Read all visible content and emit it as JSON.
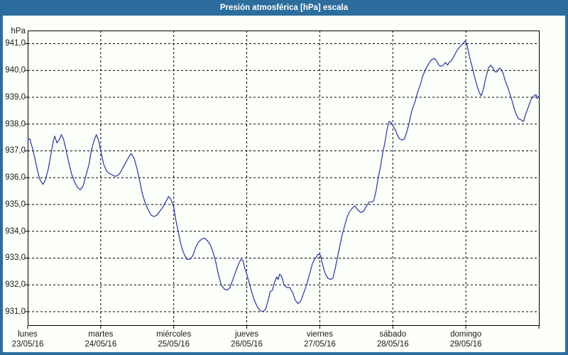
{
  "window": {
    "title": "Presión atmosférica [hPa] escala"
  },
  "colors": {
    "frame": "#2d6d9e",
    "panel_background": "#fdfffa",
    "line": "#2433ad",
    "grid": "#000000",
    "text": "#1a1a1a",
    "title_text": "#ffffff"
  },
  "chart_data": {
    "type": "line",
    "title": "Presión atmosférica [hPa] escala",
    "unit_label": "hPa",
    "ylabel": "hPa",
    "xlabel": "",
    "ylim": [
      930.47,
      941.49
    ],
    "xlim_days": [
      0,
      7
    ],
    "grid": "dashed horizontal at every 1 hPa, dashed vertical at day boundaries",
    "legend": "none",
    "y_ticks": [
      {
        "value": 941,
        "label": "941,0"
      },
      {
        "value": 940,
        "label": "940,0"
      },
      {
        "value": 939,
        "label": "939,0"
      },
      {
        "value": 938,
        "label": "938,0"
      },
      {
        "value": 937,
        "label": "937,0"
      },
      {
        "value": 936,
        "label": "936,0"
      },
      {
        "value": 935,
        "label": "935,0"
      },
      {
        "value": 934,
        "label": "934,0"
      },
      {
        "value": 933,
        "label": "933,0"
      },
      {
        "value": 932,
        "label": "932,0"
      },
      {
        "value": 931,
        "label": "931,0"
      }
    ],
    "x_days": [
      {
        "name": "lunes",
        "date": "23/05/16"
      },
      {
        "name": "martes",
        "date": "24/05/16"
      },
      {
        "name": "miércoles",
        "date": "25/05/16"
      },
      {
        "name": "jueves",
        "date": "26/05/16"
      },
      {
        "name": "viernes",
        "date": "27/05/16"
      },
      {
        "name": "sábado",
        "date": "28/05/16"
      },
      {
        "name": "domingo",
        "date": "29/05/16"
      }
    ],
    "series": [
      {
        "name": "Presión atmosférica",
        "color": "#2433ad",
        "points": [
          [
            0.0,
            937.4
          ],
          [
            0.03,
            937.45
          ],
          [
            0.06,
            937.15
          ],
          [
            0.1,
            936.7
          ],
          [
            0.14,
            936.2
          ],
          [
            0.17,
            935.9
          ],
          [
            0.21,
            935.75
          ],
          [
            0.24,
            935.9
          ],
          [
            0.28,
            936.3
          ],
          [
            0.32,
            936.9
          ],
          [
            0.35,
            937.35
          ],
          [
            0.37,
            937.55
          ],
          [
            0.4,
            937.3
          ],
          [
            0.43,
            937.4
          ],
          [
            0.46,
            937.6
          ],
          [
            0.49,
            937.45
          ],
          [
            0.52,
            937.1
          ],
          [
            0.56,
            936.6
          ],
          [
            0.6,
            936.15
          ],
          [
            0.64,
            935.85
          ],
          [
            0.68,
            935.65
          ],
          [
            0.72,
            935.55
          ],
          [
            0.76,
            935.7
          ],
          [
            0.8,
            936.1
          ],
          [
            0.84,
            936.5
          ],
          [
            0.87,
            937.0
          ],
          [
            0.91,
            937.4
          ],
          [
            0.94,
            937.6
          ],
          [
            0.97,
            937.4
          ],
          [
            1.0,
            937.0
          ],
          [
            1.04,
            936.5
          ],
          [
            1.08,
            936.25
          ],
          [
            1.12,
            936.15
          ],
          [
            1.16,
            936.1
          ],
          [
            1.2,
            936.05
          ],
          [
            1.24,
            936.1
          ],
          [
            1.27,
            936.2
          ],
          [
            1.31,
            936.4
          ],
          [
            1.35,
            936.6
          ],
          [
            1.39,
            936.8
          ],
          [
            1.42,
            936.9
          ],
          [
            1.46,
            936.7
          ],
          [
            1.5,
            936.3
          ],
          [
            1.54,
            935.8
          ],
          [
            1.57,
            935.4
          ],
          [
            1.61,
            935.05
          ],
          [
            1.65,
            934.8
          ],
          [
            1.69,
            934.6
          ],
          [
            1.73,
            934.55
          ],
          [
            1.77,
            934.6
          ],
          [
            1.81,
            934.75
          ],
          [
            1.85,
            934.9
          ],
          [
            1.89,
            935.1
          ],
          [
            1.93,
            935.3
          ],
          [
            1.96,
            935.2
          ],
          [
            2.0,
            934.9
          ],
          [
            2.03,
            934.4
          ],
          [
            2.06,
            934.0
          ],
          [
            2.09,
            933.6
          ],
          [
            2.12,
            933.3
          ],
          [
            2.15,
            933.1
          ],
          [
            2.18,
            932.95
          ],
          [
            2.21,
            932.95
          ],
          [
            2.24,
            933.0
          ],
          [
            2.27,
            933.15
          ],
          [
            2.3,
            933.4
          ],
          [
            2.34,
            933.6
          ],
          [
            2.38,
            933.7
          ],
          [
            2.42,
            933.75
          ],
          [
            2.46,
            933.65
          ],
          [
            2.5,
            933.5
          ],
          [
            2.54,
            933.2
          ],
          [
            2.58,
            932.8
          ],
          [
            2.61,
            932.4
          ],
          [
            2.65,
            932.0
          ],
          [
            2.69,
            931.85
          ],
          [
            2.73,
            931.8
          ],
          [
            2.77,
            931.9
          ],
          [
            2.81,
            932.2
          ],
          [
            2.85,
            932.5
          ],
          [
            2.89,
            932.8
          ],
          [
            2.92,
            932.95
          ],
          [
            2.95,
            932.9
          ],
          [
            2.97,
            932.65
          ],
          [
            3.0,
            932.4
          ],
          [
            3.03,
            932.1
          ],
          [
            3.06,
            931.8
          ],
          [
            3.1,
            931.45
          ],
          [
            3.14,
            931.2
          ],
          [
            3.18,
            931.05
          ],
          [
            3.22,
            931.0
          ],
          [
            3.26,
            931.1
          ],
          [
            3.3,
            931.5
          ],
          [
            3.32,
            931.75
          ],
          [
            3.35,
            931.8
          ],
          [
            3.38,
            932.1
          ],
          [
            3.41,
            932.3
          ],
          [
            3.43,
            932.2
          ],
          [
            3.45,
            932.4
          ],
          [
            3.48,
            932.3
          ],
          [
            3.51,
            932.0
          ],
          [
            3.55,
            931.9
          ],
          [
            3.59,
            931.9
          ],
          [
            3.63,
            931.7
          ],
          [
            3.66,
            931.45
          ],
          [
            3.7,
            931.3
          ],
          [
            3.74,
            931.4
          ],
          [
            3.78,
            931.7
          ],
          [
            3.82,
            932.0
          ],
          [
            3.86,
            932.4
          ],
          [
            3.9,
            932.8
          ],
          [
            3.94,
            933.0
          ],
          [
            3.98,
            933.15
          ],
          [
            4.01,
            933.1
          ],
          [
            4.03,
            932.85
          ],
          [
            4.07,
            932.45
          ],
          [
            4.11,
            932.25
          ],
          [
            4.15,
            932.2
          ],
          [
            4.18,
            932.25
          ],
          [
            4.21,
            932.6
          ],
          [
            4.24,
            933.0
          ],
          [
            4.27,
            933.4
          ],
          [
            4.3,
            933.8
          ],
          [
            4.33,
            934.1
          ],
          [
            4.37,
            934.5
          ],
          [
            4.4,
            934.7
          ],
          [
            4.44,
            934.85
          ],
          [
            4.48,
            934.95
          ],
          [
            4.52,
            934.8
          ],
          [
            4.56,
            934.7
          ],
          [
            4.6,
            934.75
          ],
          [
            4.64,
            934.95
          ],
          [
            4.68,
            935.1
          ],
          [
            4.72,
            935.1
          ],
          [
            4.74,
            935.15
          ],
          [
            4.77,
            935.5
          ],
          [
            4.8,
            936.0
          ],
          [
            4.83,
            936.4
          ],
          [
            4.86,
            936.9
          ],
          [
            4.89,
            937.3
          ],
          [
            4.92,
            937.8
          ],
          [
            4.95,
            938.1
          ],
          [
            4.98,
            938.05
          ],
          [
            5.01,
            937.9
          ],
          [
            5.04,
            937.75
          ],
          [
            5.06,
            937.6
          ],
          [
            5.09,
            937.45
          ],
          [
            5.13,
            937.4
          ],
          [
            5.16,
            937.45
          ],
          [
            5.19,
            937.7
          ],
          [
            5.22,
            938.0
          ],
          [
            5.26,
            938.5
          ],
          [
            5.3,
            938.8
          ],
          [
            5.34,
            939.2
          ],
          [
            5.38,
            939.5
          ],
          [
            5.41,
            939.8
          ],
          [
            5.45,
            940.05
          ],
          [
            5.49,
            940.25
          ],
          [
            5.53,
            940.4
          ],
          [
            5.57,
            940.45
          ],
          [
            5.6,
            940.35
          ],
          [
            5.63,
            940.2
          ],
          [
            5.66,
            940.15
          ],
          [
            5.69,
            940.2
          ],
          [
            5.72,
            940.3
          ],
          [
            5.75,
            940.2
          ],
          [
            5.77,
            940.3
          ],
          [
            5.8,
            940.35
          ],
          [
            5.84,
            940.55
          ],
          [
            5.88,
            940.75
          ],
          [
            5.92,
            940.9
          ],
          [
            5.96,
            941.0
          ],
          [
            5.99,
            941.1
          ],
          [
            6.02,
            940.9
          ],
          [
            6.05,
            940.5
          ],
          [
            6.08,
            940.2
          ],
          [
            6.11,
            939.85
          ],
          [
            6.15,
            939.45
          ],
          [
            6.18,
            939.2
          ],
          [
            6.21,
            939.05
          ],
          [
            6.24,
            939.3
          ],
          [
            6.27,
            939.7
          ],
          [
            6.31,
            940.1
          ],
          [
            6.34,
            940.2
          ],
          [
            6.37,
            940.1
          ],
          [
            6.4,
            939.95
          ],
          [
            6.43,
            939.95
          ],
          [
            6.46,
            940.1
          ],
          [
            6.48,
            940.05
          ],
          [
            6.51,
            939.9
          ],
          [
            6.54,
            939.6
          ],
          [
            6.57,
            939.4
          ],
          [
            6.6,
            939.15
          ],
          [
            6.63,
            938.9
          ],
          [
            6.66,
            938.6
          ],
          [
            6.69,
            938.35
          ],
          [
            6.72,
            938.2
          ],
          [
            6.76,
            938.15
          ],
          [
            6.79,
            938.1
          ],
          [
            6.81,
            938.3
          ],
          [
            6.85,
            938.6
          ],
          [
            6.89,
            938.9
          ],
          [
            6.93,
            939.05
          ],
          [
            6.96,
            939.1
          ],
          [
            6.98,
            938.95
          ],
          [
            7.0,
            939.05
          ]
        ]
      }
    ]
  }
}
